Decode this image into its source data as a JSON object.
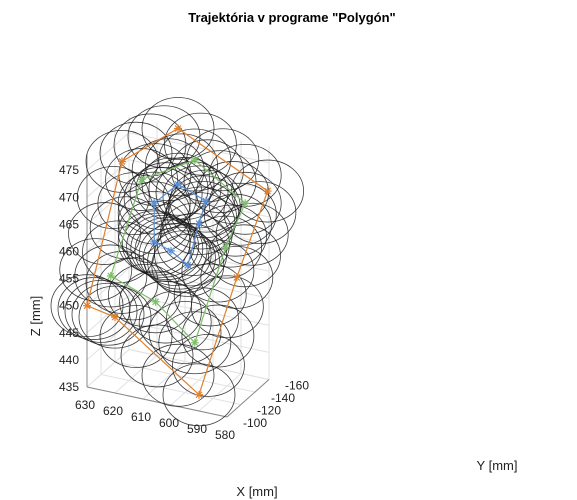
{
  "chart_data": {
    "type": "line3d",
    "title": "Trajektória v programe \"Polygón\"",
    "xlabel": "X [mm]",
    "ylabel": "Y [mm]",
    "zlabel": "Z [mm]",
    "xticks": [
      "630",
      "620",
      "610",
      "600",
      "590",
      "580"
    ],
    "yticks": [
      "-100",
      "-120",
      "-140",
      "-160"
    ],
    "zticks": [
      "475",
      "470",
      "465",
      "460",
      "455",
      "450",
      "445",
      "440",
      "435"
    ],
    "grid": true,
    "series": [
      {
        "color": "#e0802a",
        "points": [
          [
            630,
            -100,
            450
          ],
          [
            620,
            -100,
            449
          ],
          [
            590,
            -100,
            438
          ],
          [
            582,
            -122,
            458
          ],
          [
            580,
            -158,
            470
          ],
          [
            612,
            -158,
            478
          ],
          [
            628,
            -142,
            472
          ],
          [
            630,
            -100,
            450
          ]
        ]
      },
      {
        "color": "#7cc06a",
        "points": [
          [
            624,
            -110,
            455
          ],
          [
            608,
            -110,
            452
          ],
          [
            594,
            -110,
            446
          ],
          [
            588,
            -130,
            462
          ],
          [
            586,
            -150,
            468
          ],
          [
            604,
            -150,
            474
          ],
          [
            620,
            -138,
            470
          ],
          [
            624,
            -110,
            455
          ]
        ]
      },
      {
        "color": "#5a8fd8",
        "points": [
          [
            612,
            -124,
            461
          ],
          [
            606,
            -124,
            460
          ],
          [
            600,
            -124,
            458
          ],
          [
            598,
            -132,
            465
          ],
          [
            598,
            -142,
            468
          ],
          [
            608,
            -142,
            470
          ],
          [
            614,
            -132,
            467
          ],
          [
            612,
            -124,
            461
          ]
        ]
      }
    ],
    "circle_color": "#1a1a1a"
  }
}
